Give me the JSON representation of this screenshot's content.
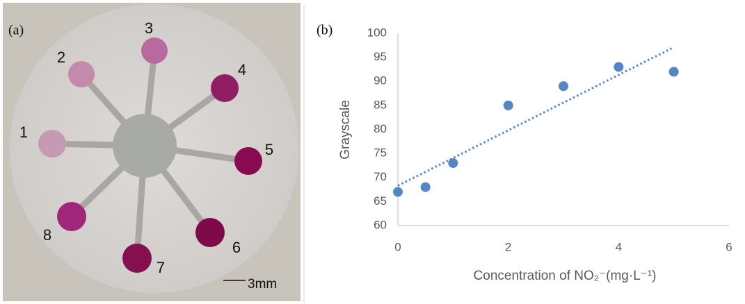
{
  "panel_a": {
    "label": "(a)",
    "spot_labels": [
      "1",
      "2",
      "3",
      "4",
      "5",
      "6",
      "7",
      "8"
    ],
    "scale_bar": "3mm"
  },
  "chart_data": {
    "type": "scatter",
    "panel_label": "(b)",
    "x_label": "Concentration of NO₂⁻(mg·L⁻¹)",
    "y_label": "Grayscale",
    "x": [
      0,
      0.5,
      1,
      2,
      3,
      4,
      5
    ],
    "values": [
      67,
      68,
      73,
      85,
      89,
      93,
      92
    ],
    "color": "#5585c4",
    "trendline": {
      "x": [
        0,
        5
      ],
      "values": [
        68.3,
        97.1
      ],
      "style": "dotted"
    },
    "xlim": [
      0,
      6
    ],
    "xticks": [
      0,
      2,
      4,
      6
    ],
    "ylim": [
      60,
      100
    ],
    "yticks": [
      60,
      65,
      70,
      75,
      80,
      85,
      90,
      95,
      100
    ],
    "grid": false
  }
}
